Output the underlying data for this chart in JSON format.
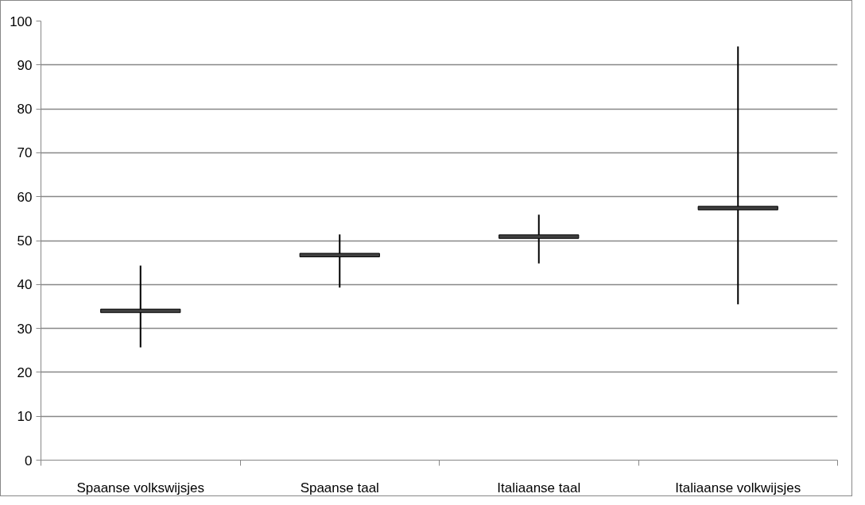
{
  "chart_data": {
    "type": "candlestick",
    "categories": [
      "Spaanse volkswijsjes",
      "Spaanse taal",
      "Italiaanse taal",
      "Italiaanse volkwijsjes"
    ],
    "ohlc": [
      [
        34.4,
        44.3,
        25.7,
        33.6
      ],
      [
        47.1,
        51.4,
        39.3,
        46.3
      ],
      [
        51.3,
        55.9,
        44.8,
        50.5
      ],
      [
        57.8,
        94.2,
        35.5,
        57.0
      ]
    ],
    "color": "#404040",
    "ylim": [
      0,
      100
    ],
    "yticks": [
      0,
      10,
      20,
      30,
      40,
      50,
      60,
      70,
      80,
      90,
      100
    ],
    "grid": "y"
  }
}
